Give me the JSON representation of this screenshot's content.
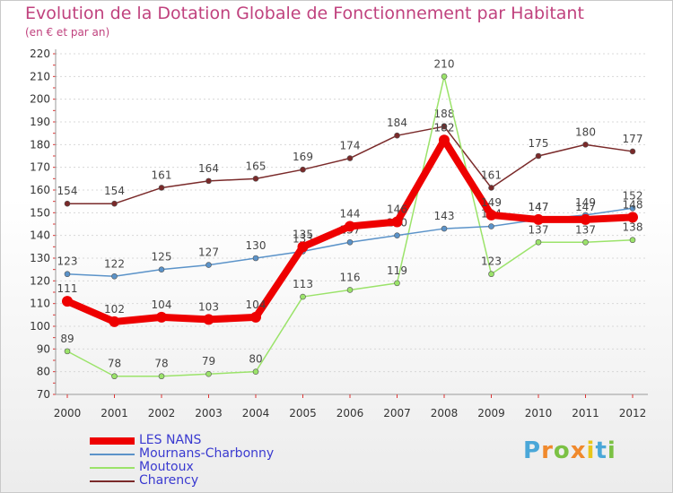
{
  "chart_data": {
    "type": "line",
    "title": "Evolution de la Dotation Globale de Fonctionnement par Habitant",
    "subtitle": "(en € et par an)",
    "categories": [
      "2000",
      "2001",
      "2002",
      "2003",
      "2004",
      "2005",
      "2006",
      "2007",
      "2008",
      "2009",
      "2010",
      "2011",
      "2012"
    ],
    "yticks": [
      70,
      80,
      90,
      100,
      110,
      120,
      130,
      140,
      150,
      160,
      170,
      180,
      190,
      200,
      210,
      220
    ],
    "ylim": [
      70,
      220
    ],
    "series": [
      {
        "name": "Charency",
        "color": "#7a2a2a",
        "values": [
          154,
          154,
          161,
          164,
          165,
          169,
          174,
          184,
          188,
          161,
          175,
          180,
          177
        ]
      },
      {
        "name": "Moutoux",
        "color": "#9be36a",
        "values": [
          89,
          78,
          78,
          79,
          80,
          113,
          116,
          119,
          210,
          123,
          137,
          137,
          138
        ]
      },
      {
        "name": "Mournans-Charbonny",
        "color": "#5b93c9",
        "values": [
          123,
          122,
          125,
          127,
          130,
          133,
          137,
          140,
          143,
          144,
          147,
          149,
          152
        ]
      },
      {
        "name": "LES NANS",
        "color": "#ee0000",
        "values": [
          111,
          102,
          104,
          103,
          104,
          135,
          144,
          146,
          182,
          149,
          147,
          147,
          148
        ]
      }
    ],
    "legend": [
      "LES NANS",
      "Mournans-Charbonny",
      "Moutoux",
      "Charency"
    ]
  },
  "logo": {
    "letters": [
      "P",
      "r",
      "o",
      "x",
      "i",
      "t",
      "i"
    ],
    "colors": [
      "#4aa7d8",
      "#f0892c",
      "#7bc144",
      "#f0892c",
      "#e8c61a",
      "#4aa7d8",
      "#7bc144"
    ]
  }
}
